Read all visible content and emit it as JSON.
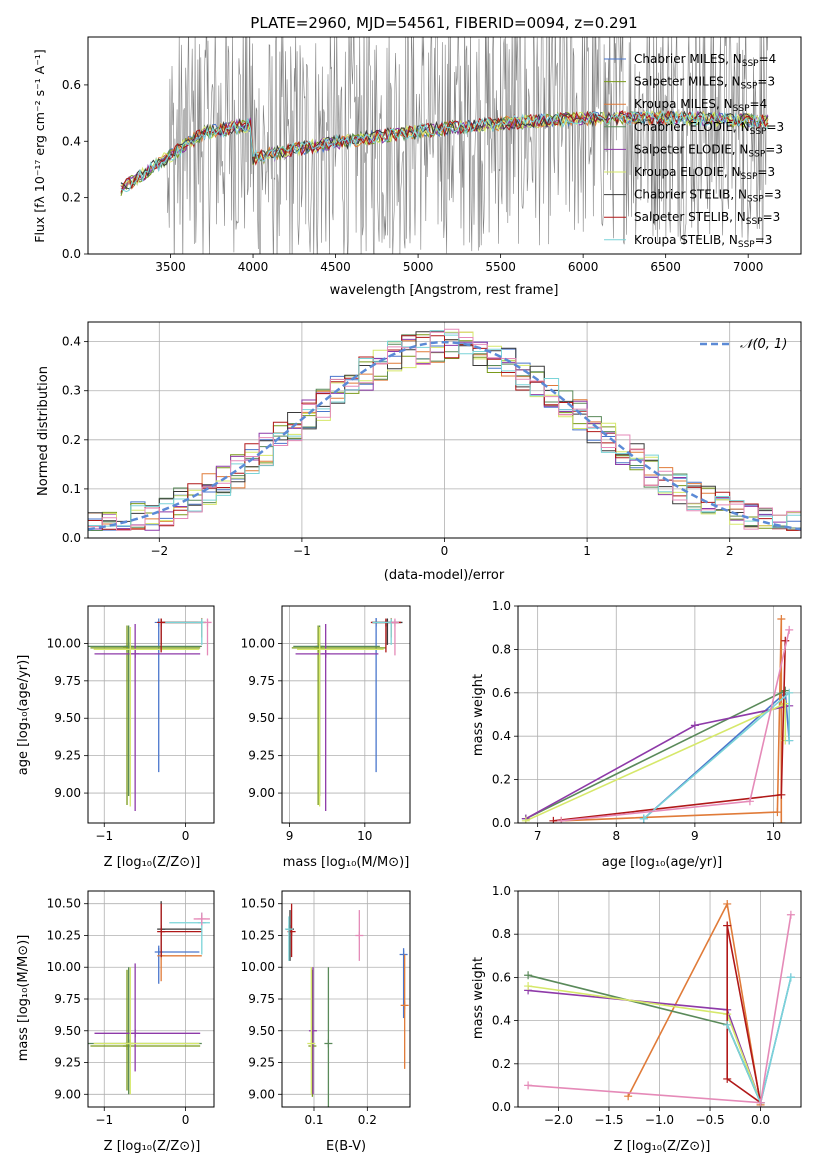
{
  "figure_title": "PLATE=2960, MJD=54561, FIBERID=0094, z=0.291",
  "colors": {
    "c1": "#4a76cc",
    "c2": "#7a9a1a",
    "c3": "#e07b39",
    "c4": "#5a8a5a",
    "c5": "#8e3aa8",
    "c6": "#d6e86a",
    "c7": "#3a3a3a",
    "c8": "#b01818",
    "c9": "#7ad4d8",
    "c_pink": "#e58ab8",
    "gray": "#808080",
    "normal": "#5b8ad6"
  },
  "panel_labels": {
    "p3_xlabel": "Z [log₁₀(Z/Z⊙)]",
    "p3_ylabel": "age  [log₁₀(age/yr)]",
    "p4_xlabel": "mass [log₁₀(M/M⊙)]",
    "p5_xlabel": "age  [log₁₀(age/yr)]",
    "p5_ylabel": "mass weight",
    "p6_xlabel": "Z [log₁₀(Z/Z⊙)]",
    "p6_ylabel": "mass [log₁₀(M/M⊙)]",
    "p7_xlabel": "E(B-V)",
    "p8_xlabel": "Z [log₁₀(Z/Z⊙)]",
    "p8_ylabel": "mass weight"
  },
  "chart_data": [
    {
      "id": "spectrum",
      "type": "line",
      "xlabel": "wavelength [Angstrom, rest frame]",
      "ylabel": "Flux [fλ 10⁻¹⁷ erg cm⁻² s⁻¹ A⁻¹]",
      "xlim": [
        3000,
        7320
      ],
      "ylim": [
        0,
        0.77
      ],
      "xticks": [
        3500,
        4000,
        4500,
        5000,
        5500,
        6000,
        6500,
        7000
      ],
      "yticks": [
        0.0,
        0.2,
        0.4,
        0.6
      ],
      "data_range": [
        3200,
        7120
      ],
      "legend_position": "upper right",
      "legend": [
        {
          "label": "Chabrier MILES, N",
          "sub": "SSP",
          "count": "=4",
          "color": "#4a76cc"
        },
        {
          "label": "Salpeter MILES, N",
          "sub": "SSP",
          "count": "=3",
          "color": "#7a9a1a"
        },
        {
          "label": "Kroupa MILES, N",
          "sub": "SSP",
          "count": "=4",
          "color": "#e07b39"
        },
        {
          "label": "Chabrier ELODIE, N",
          "sub": "SSP",
          "count": "=3",
          "color": "#5a8a5a"
        },
        {
          "label": "Salpeter ELODIE, N",
          "sub": "SSP",
          "count": "=3",
          "color": "#8e3aa8"
        },
        {
          "label": "Kroupa ELODIE, N",
          "sub": "SSP",
          "count": "=3",
          "color": "#d6e86a"
        },
        {
          "label": "Chabrier STELIB, N",
          "sub": "SSP",
          "count": "=3",
          "color": "#3a3a3a"
        },
        {
          "label": "Salpeter STELIB, N",
          "sub": "SSP",
          "count": "=3",
          "color": "#b01818"
        },
        {
          "label": "Kroupa STELIB, N",
          "sub": "SSP",
          "count": "=3",
          "color": "#7ad4d8"
        }
      ]
    },
    {
      "id": "residuals",
      "type": "line",
      "xlabel": "(data-model)/error",
      "ylabel": "Normed distribution",
      "xlim": [
        -2.5,
        2.5
      ],
      "ylim": [
        0,
        0.44
      ],
      "xticks": [
        -2,
        -1,
        0,
        1,
        2
      ],
      "yticks": [
        0.0,
        0.1,
        0.2,
        0.3,
        0.4
      ],
      "grid": true,
      "legend_position": "upper right",
      "legend_label": "𝒩(0, 1)",
      "bins": 50
    },
    {
      "id": "age_vs_Z",
      "type": "scatter",
      "xlim": [
        -1.2,
        0.35
      ],
      "ylim": [
        8.8,
        10.25
      ],
      "xticks": [
        -1,
        0
      ],
      "yticks": [
        9.0,
        9.25,
        9.5,
        9.75,
        10.0
      ],
      "grid": true,
      "errorbars": [
        {
          "color": "#4a76cc",
          "x": -0.33,
          "xerr": [
            0.0,
            0.0
          ],
          "y": 10.14,
          "yerr": [
            1.0,
            0.0
          ]
        },
        {
          "color": "#7a9a1a",
          "x": -0.72,
          "xerr": [
            0.45,
            0.9
          ],
          "y": 9.97,
          "yerr": [
            1.05,
            0.15
          ]
        },
        {
          "color": "#e07b39",
          "x": 0.2,
          "xerr": [
            0.45,
            0.05
          ],
          "y": 10.14,
          "yerr": [
            0.1,
            0.03
          ]
        },
        {
          "color": "#5a8a5a",
          "x": -0.7,
          "xerr": [
            0.5,
            0.9
          ],
          "y": 9.98,
          "yerr": [
            1.0,
            0.14
          ]
        },
        {
          "color": "#8e3aa8",
          "x": -0.62,
          "xerr": [
            0.5,
            0.8
          ],
          "y": 9.93,
          "yerr": [
            1.05,
            0.2
          ]
        },
        {
          "color": "#d6e86a",
          "x": -0.68,
          "xerr": [
            0.45,
            0.85
          ],
          "y": 9.96,
          "yerr": [
            1.05,
            0.15
          ]
        },
        {
          "color": "#3a3a3a",
          "x": -0.3,
          "xerr": [
            0.0,
            0.5
          ],
          "y": 10.14,
          "yerr": [
            0.15,
            0.02
          ]
        },
        {
          "color": "#b01818",
          "x": -0.3,
          "xerr": [
            0.0,
            0.5
          ],
          "y": 10.14,
          "yerr": [
            0.2,
            0.02
          ]
        },
        {
          "color": "#7ad4d8",
          "x": 0.2,
          "xerr": [
            0.45,
            0.05
          ],
          "y": 10.14,
          "yerr": [
            0.15,
            0.02
          ]
        },
        {
          "color": "#e58ab8",
          "x": 0.27,
          "xerr": [
            0.0,
            0.05
          ],
          "y": 10.14,
          "yerr": [
            0.22,
            0.02
          ]
        }
      ]
    },
    {
      "id": "age_vs_mass",
      "type": "scatter",
      "xlim": [
        8.9,
        10.6
      ],
      "ylim": [
        8.8,
        10.25
      ],
      "xticks": [
        9,
        10
      ],
      "yticks": [
        9.0,
        9.25,
        9.5,
        9.75,
        10.0
      ],
      "grid": true,
      "errorbars": [
        {
          "color": "#4a76cc",
          "x": 10.15,
          "xerr": [
            0.0,
            0.0
          ],
          "y": 10.14,
          "yerr": [
            1.0,
            0.03
          ]
        },
        {
          "color": "#7a9a1a",
          "x": 9.38,
          "xerr": [
            0.35,
            0.9
          ],
          "y": 9.97,
          "yerr": [
            1.05,
            0.15
          ]
        },
        {
          "color": "#e07b39",
          "x": 10.35,
          "xerr": [
            0.25,
            0.1
          ],
          "y": 10.14,
          "yerr": [
            0.1,
            0.03
          ]
        },
        {
          "color": "#5a8a5a",
          "x": 9.4,
          "xerr": [
            0.35,
            0.8
          ],
          "y": 9.98,
          "yerr": [
            1.0,
            0.14
          ]
        },
        {
          "color": "#8e3aa8",
          "x": 9.48,
          "xerr": [
            0.4,
            0.7
          ],
          "y": 9.93,
          "yerr": [
            1.05,
            0.2
          ]
        },
        {
          "color": "#d6e86a",
          "x": 9.4,
          "xerr": [
            0.3,
            0.85
          ],
          "y": 9.96,
          "yerr": [
            1.05,
            0.15
          ]
        },
        {
          "color": "#3a3a3a",
          "x": 10.3,
          "xerr": [
            0.2,
            0.2
          ],
          "y": 10.14,
          "yerr": [
            0.15,
            0.02
          ]
        },
        {
          "color": "#b01818",
          "x": 10.28,
          "xerr": [
            0.2,
            0.2
          ],
          "y": 10.14,
          "yerr": [
            0.2,
            0.02
          ]
        },
        {
          "color": "#7ad4d8",
          "x": 10.35,
          "xerr": [
            0.25,
            0.1
          ],
          "y": 10.14,
          "yerr": [
            0.15,
            0.02
          ]
        },
        {
          "color": "#e58ab8",
          "x": 10.4,
          "xerr": [
            0.05,
            0.05
          ],
          "y": 10.14,
          "yerr": [
            0.22,
            0.02
          ]
        }
      ]
    },
    {
      "id": "weight_vs_age",
      "type": "line",
      "xlim": [
        6.75,
        10.35
      ],
      "ylim": [
        0,
        1.0
      ],
      "xticks": [
        7,
        8,
        9,
        10
      ],
      "yticks": [
        0.0,
        0.2,
        0.4,
        0.6,
        0.8,
        1.0
      ],
      "grid": true,
      "series": [
        {
          "color": "#4a76cc",
          "x": [
            8.35,
            10.15,
            10.2
          ],
          "y": [
            0.02,
            0.6,
            0.38
          ]
        },
        {
          "color": "#e07b39",
          "x": [
            7.3,
            10.05,
            10.1,
            10.1
          ],
          "y": [
            0.01,
            0.05,
            0.94,
            0.0
          ]
        },
        {
          "color": "#5a8a5a",
          "x": [
            6.85,
            10.15
          ],
          "y": [
            0.02,
            0.61
          ]
        },
        {
          "color": "#8e3aa8",
          "x": [
            6.85,
            9.0,
            10.2
          ],
          "y": [
            0.02,
            0.45,
            0.54
          ]
        },
        {
          "color": "#d6e86a",
          "x": [
            6.85,
            10.15,
            10.15
          ],
          "y": [
            0.01,
            0.55,
            0.38
          ]
        },
        {
          "color": "#b01818",
          "x": [
            7.2,
            10.1,
            10.15
          ],
          "y": [
            0.01,
            0.13,
            0.84
          ]
        },
        {
          "color": "#7ad4d8",
          "x": [
            8.35,
            10.2,
            10.2
          ],
          "y": [
            0.02,
            0.6,
            0.38
          ]
        },
        {
          "color": "#e58ab8",
          "x": [
            7.3,
            9.7,
            10.2
          ],
          "y": [
            0.01,
            0.1,
            0.89
          ]
        }
      ]
    },
    {
      "id": "mass_vs_Z",
      "type": "scatter",
      "xlim": [
        -1.2,
        0.35
      ],
      "ylim": [
        8.9,
        10.6
      ],
      "xticks": [
        -1,
        0
      ],
      "yticks": [
        9.0,
        9.25,
        9.5,
        9.75,
        10.0,
        10.25,
        10.5
      ],
      "grid": true,
      "errorbars": [
        {
          "color": "#4a76cc",
          "x": -0.33,
          "xerr": [
            0.0,
            0.5
          ],
          "y": 10.12,
          "yerr": [
            0.25,
            0.05
          ]
        },
        {
          "color": "#7a9a1a",
          "x": -0.72,
          "xerr": [
            0.45,
            0.9
          ],
          "y": 9.38,
          "yerr": [
            0.35,
            0.6
          ]
        },
        {
          "color": "#e07b39",
          "x": -0.3,
          "xerr": [
            0.0,
            0.5
          ],
          "y": 10.09,
          "yerr": [
            0.2,
            0.05
          ]
        },
        {
          "color": "#5a8a5a",
          "x": -0.7,
          "xerr": [
            0.5,
            0.9
          ],
          "y": 9.4,
          "yerr": [
            0.4,
            0.6
          ]
        },
        {
          "color": "#8e3aa8",
          "x": -0.62,
          "xerr": [
            0.5,
            0.8
          ],
          "y": 9.48,
          "yerr": [
            0.3,
            0.55
          ]
        },
        {
          "color": "#d6e86a",
          "x": -0.68,
          "xerr": [
            0.45,
            0.85
          ],
          "y": 9.4,
          "yerr": [
            0.4,
            0.6
          ]
        },
        {
          "color": "#3a3a3a",
          "x": -0.3,
          "xerr": [
            0.0,
            0.5
          ],
          "y": 10.3,
          "yerr": [
            0.22,
            0.22
          ]
        },
        {
          "color": "#b01818",
          "x": -0.3,
          "xerr": [
            0.0,
            0.5
          ],
          "y": 10.28,
          "yerr": [
            0.2,
            0.22
          ]
        },
        {
          "color": "#7ad4d8",
          "x": 0.2,
          "xerr": [
            0.4,
            0.1
          ],
          "y": 10.35,
          "yerr": [
            0.25,
            0.08
          ]
        },
        {
          "color": "#e58ab8",
          "x": 0.2,
          "xerr": [
            0.1,
            0.1
          ],
          "y": 10.38,
          "yerr": [
            0.05,
            0.05
          ]
        }
      ]
    },
    {
      "id": "mass_vs_ebv",
      "type": "scatter",
      "xlim": [
        0.04,
        0.28
      ],
      "ylim": [
        8.9,
        10.6
      ],
      "xticks": [
        0.1,
        0.2
      ],
      "yticks": [
        9.0,
        9.25,
        9.5,
        9.75,
        10.0,
        10.25,
        10.5
      ],
      "grid": true,
      "errorbars": [
        {
          "color": "#4a76cc",
          "x": 0.268,
          "y": 10.1,
          "yerr": [
            0.5,
            0.05
          ]
        },
        {
          "color": "#7a9a1a",
          "x": 0.097,
          "y": 9.38,
          "yerr": [
            0.4,
            0.6
          ]
        },
        {
          "color": "#e07b39",
          "x": 0.27,
          "y": 9.7,
          "yerr": [
            0.5,
            0.4
          ]
        },
        {
          "color": "#5a8a5a",
          "x": 0.127,
          "y": 9.4,
          "yerr": [
            0.5,
            0.6
          ]
        },
        {
          "color": "#8e3aa8",
          "x": 0.098,
          "y": 9.5,
          "yerr": [
            0.5,
            0.5
          ]
        },
        {
          "color": "#d6e86a",
          "x": 0.095,
          "y": 9.4,
          "yerr": [
            0.4,
            0.6
          ]
        },
        {
          "color": "#3a3a3a",
          "x": 0.055,
          "y": 10.3,
          "yerr": [
            0.25,
            0.15
          ]
        },
        {
          "color": "#b01818",
          "x": 0.058,
          "y": 10.28,
          "yerr": [
            0.2,
            0.22
          ]
        },
        {
          "color": "#7ad4d8",
          "x": 0.053,
          "y": 10.3,
          "yerr": [
            0.25,
            0.1
          ]
        },
        {
          "color": "#e58ab8",
          "x": 0.185,
          "y": 10.25,
          "yerr": [
            0.2,
            0.2
          ]
        }
      ]
    },
    {
      "id": "weight_vs_Z",
      "type": "line",
      "xlim": [
        -2.4,
        0.4
      ],
      "ylim": [
        0,
        1.0
      ],
      "xticks": [
        -2.0,
        -1.5,
        -1.0,
        -0.5,
        0.0
      ],
      "yticks": [
        0.0,
        0.2,
        0.4,
        0.6,
        0.8,
        1.0
      ],
      "grid": true,
      "series": [
        {
          "color": "#4a76cc",
          "x": [
            -0.33,
            0.0,
            0.3
          ],
          "y": [
            0.38,
            0.02,
            0.6
          ]
        },
        {
          "color": "#e07b39",
          "x": [
            -1.31,
            -0.33,
            0.0
          ],
          "y": [
            0.05,
            0.94,
            0.01
          ]
        },
        {
          "color": "#5a8a5a",
          "x": [
            -2.3,
            -0.33,
            0.0
          ],
          "y": [
            0.61,
            0.38,
            0.02
          ]
        },
        {
          "color": "#8e3aa8",
          "x": [
            -2.3,
            -0.33,
            0.0
          ],
          "y": [
            0.54,
            0.45,
            0.02
          ]
        },
        {
          "color": "#d6e86a",
          "x": [
            -2.3,
            -0.33,
            0.0
          ],
          "y": [
            0.56,
            0.43,
            0.02
          ]
        },
        {
          "color": "#b01818",
          "x": [
            -0.33,
            -0.33,
            0.0,
            -0.33
          ],
          "y": [
            0.84,
            0.13,
            0.02,
            0.84
          ]
        },
        {
          "color": "#7ad4d8",
          "x": [
            -0.33,
            0.0,
            0.3
          ],
          "y": [
            0.38,
            0.02,
            0.6
          ]
        },
        {
          "color": "#e58ab8",
          "x": [
            -2.3,
            0.0,
            0.3
          ],
          "y": [
            0.1,
            0.02,
            0.89
          ]
        }
      ]
    }
  ]
}
